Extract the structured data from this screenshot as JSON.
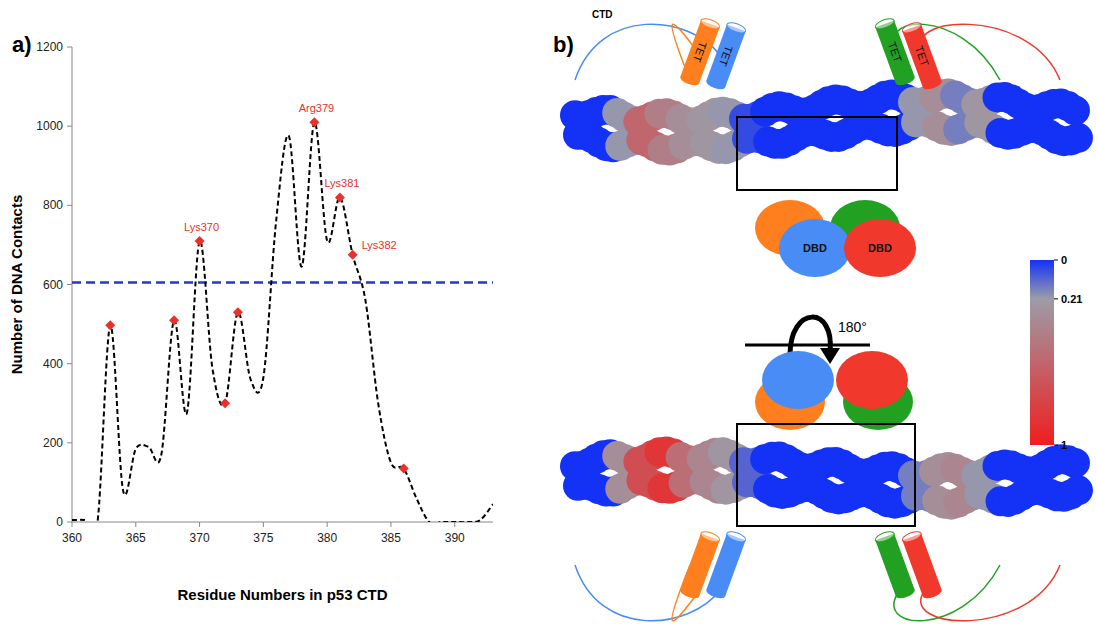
{
  "chart_data": {
    "type": "line",
    "panel_label": "a)",
    "x_label": "Residue Numbers in p53 CTD",
    "y_label": "Number of DNA Contacts",
    "x": [
      360,
      361,
      362,
      363,
      364,
      365,
      366,
      367,
      368,
      369,
      370,
      371,
      372,
      373,
      374,
      375,
      376,
      377,
      378,
      379,
      380,
      381,
      382,
      383,
      384,
      385,
      386,
      387,
      388,
      389,
      390,
      391,
      392,
      393
    ],
    "series": [
      {
        "type": "line",
        "color": "#000000",
        "line_style": "dashed",
        "values": [
          5,
          5,
          0,
          497,
          80,
          185,
          190,
          170,
          510,
          275,
          710,
          390,
          300,
          530,
          360,
          365,
          760,
          975,
          645,
          1010,
          710,
          820,
          675,
          560,
          300,
          150,
          135,
          60,
          0,
          0,
          0,
          0,
          5,
          45
        ]
      },
      {
        "type": "scatter",
        "color": "#e8312a",
        "marker": "diamond",
        "x": [
          363,
          368,
          370,
          372,
          373,
          379,
          381,
          382,
          386
        ],
        "values": [
          497,
          510,
          710,
          300,
          530,
          1010,
          820,
          675,
          135
        ]
      }
    ],
    "threshold": 605,
    "annotations": [
      {
        "text": "Lys370",
        "x": 370,
        "y": 710
      },
      {
        "text": "Arg379",
        "x": 379,
        "y": 1010
      },
      {
        "text": "Lys381",
        "x": 381,
        "y": 820
      },
      {
        "text": "Lys382",
        "x": 382,
        "y": 675
      }
    ],
    "xlim": [
      360,
      393
    ],
    "xticks": [
      360,
      365,
      370,
      375,
      380,
      385,
      390
    ],
    "ylim": [
      0,
      1200
    ],
    "yticks": [
      0,
      200,
      400,
      600,
      800,
      1000,
      1200
    ],
    "grid": false
  },
  "diagram": {
    "panel_label": "b)",
    "ctd_label": "CTD",
    "tet_labels": [
      "TET",
      "TET",
      "TET",
      "TET"
    ],
    "dbd_labels": [
      "DBD",
      "DBD"
    ],
    "rotation_label": "180°",
    "colorbar": {
      "range": [
        0,
        1
      ],
      "ticks": [
        0,
        0.21,
        1
      ],
      "colors": [
        "#1432f5",
        "#9c9ca8",
        "#f01e1e"
      ]
    },
    "dna_top": [
      0,
      0,
      0.2,
      0.55,
      0.4,
      0.3,
      0.25,
      0.2,
      0.05,
      0,
      0,
      0,
      0,
      0,
      0,
      0,
      0.2,
      0.3,
      0.15,
      0.25,
      0,
      0,
      0,
      0
    ],
    "dna_bottom": [
      0,
      0,
      0.3,
      0.7,
      0.85,
      0.5,
      0.35,
      0.25,
      0.1,
      0,
      0,
      0,
      0,
      0,
      0,
      0,
      0.15,
      0.3,
      0.35,
      0.2,
      0,
      0,
      0,
      0
    ]
  }
}
